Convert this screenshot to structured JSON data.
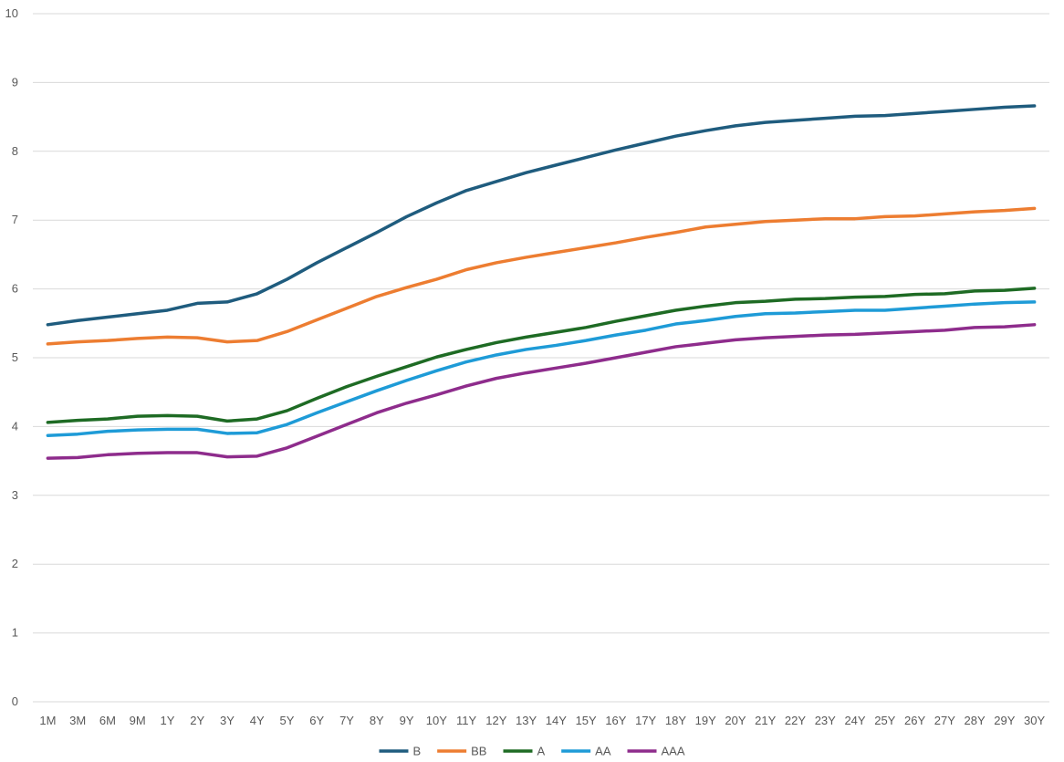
{
  "chart_data": {
    "type": "line",
    "title": "",
    "xlabel": "",
    "ylabel": "",
    "ylim": [
      0,
      10
    ],
    "yticks": [
      "0",
      "1",
      "2",
      "3",
      "4",
      "5",
      "6",
      "7",
      "8",
      "9",
      "10"
    ],
    "grid": "horizontal",
    "legend_position": "bottom",
    "categories": [
      "1M",
      "3M",
      "6M",
      "9M",
      "1Y",
      "2Y",
      "3Y",
      "4Y",
      "5Y",
      "6Y",
      "7Y",
      "8Y",
      "9Y",
      "10Y",
      "11Y",
      "12Y",
      "13Y",
      "14Y",
      "15Y",
      "16Y",
      "17Y",
      "18Y",
      "19Y",
      "20Y",
      "21Y",
      "22Y",
      "23Y",
      "24Y",
      "25Y",
      "26Y",
      "27Y",
      "28Y",
      "29Y",
      "30Y"
    ],
    "series": [
      {
        "name": "B",
        "color": "#1F5C7E",
        "values": [
          5.48,
          5.54,
          5.59,
          5.64,
          5.69,
          5.79,
          5.81,
          5.93,
          6.14,
          6.38,
          6.6,
          6.82,
          7.05,
          7.25,
          7.43,
          7.56,
          7.69,
          7.8,
          7.91,
          8.02,
          8.12,
          8.22,
          8.3,
          8.37,
          8.42,
          8.45,
          8.48,
          8.51,
          8.52,
          8.55,
          8.58,
          8.61,
          8.64,
          8.66
        ]
      },
      {
        "name": "BB",
        "color": "#ED7D31",
        "values": [
          5.2,
          5.23,
          5.25,
          5.28,
          5.3,
          5.29,
          5.23,
          5.25,
          5.38,
          5.55,
          5.72,
          5.89,
          6.02,
          6.14,
          6.28,
          6.38,
          6.46,
          6.53,
          6.6,
          6.67,
          6.75,
          6.82,
          6.9,
          6.94,
          6.98,
          7.0,
          7.02,
          7.02,
          7.05,
          7.06,
          7.09,
          7.12,
          7.14,
          7.17
        ]
      },
      {
        "name": "A",
        "color": "#1E6B24",
        "values": [
          4.06,
          4.09,
          4.11,
          4.15,
          4.16,
          4.15,
          4.08,
          4.11,
          4.23,
          4.41,
          4.58,
          4.73,
          4.87,
          5.01,
          5.12,
          5.22,
          5.3,
          5.37,
          5.44,
          5.53,
          5.61,
          5.69,
          5.75,
          5.8,
          5.82,
          5.85,
          5.86,
          5.88,
          5.89,
          5.92,
          5.93,
          5.97,
          5.98,
          6.01
        ]
      },
      {
        "name": "AA",
        "color": "#1E9BD7",
        "values": [
          3.87,
          3.89,
          3.93,
          3.95,
          3.96,
          3.96,
          3.9,
          3.91,
          4.03,
          4.2,
          4.36,
          4.52,
          4.67,
          4.81,
          4.94,
          5.04,
          5.12,
          5.18,
          5.25,
          5.33,
          5.4,
          5.49,
          5.54,
          5.6,
          5.64,
          5.65,
          5.67,
          5.69,
          5.69,
          5.72,
          5.75,
          5.78,
          5.8,
          5.81
        ]
      },
      {
        "name": "AAA",
        "color": "#8E2C8C",
        "values": [
          3.54,
          3.55,
          3.59,
          3.61,
          3.62,
          3.62,
          3.56,
          3.57,
          3.69,
          3.86,
          4.03,
          4.2,
          4.34,
          4.46,
          4.59,
          4.7,
          4.78,
          4.85,
          4.92,
          5.0,
          5.08,
          5.16,
          5.21,
          5.26,
          5.29,
          5.31,
          5.33,
          5.34,
          5.36,
          5.38,
          5.4,
          5.44,
          5.45,
          5.48
        ]
      }
    ]
  }
}
